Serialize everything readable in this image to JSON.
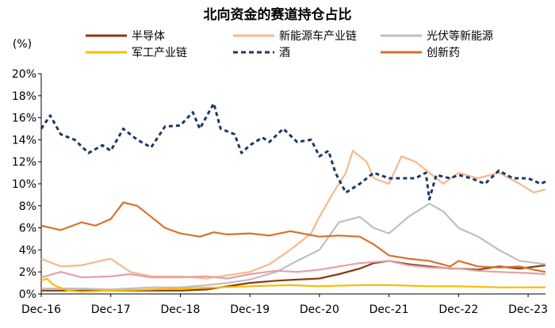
{
  "chart_data": {
    "type": "line",
    "title": "北向资金的赛道持仓占比",
    "ylabel": "(%)",
    "xlabel": "",
    "ylim": [
      0,
      20
    ],
    "yticks": [
      "0%",
      "2%",
      "4%",
      "6%",
      "8%",
      "10%",
      "12%",
      "14%",
      "16%",
      "18%",
      "20%"
    ],
    "xlim": [
      2016.92,
      2024.17
    ],
    "xticks": [
      {
        "label": "Dec-16",
        "x": 2016.92
      },
      {
        "label": "Dec-17",
        "x": 2017.92
      },
      {
        "label": "Dec-18",
        "x": 2018.92
      },
      {
        "label": "Dec-19",
        "x": 2019.92
      },
      {
        "label": "Dec-20",
        "x": 2020.92
      },
      {
        "label": "Dec-21",
        "x": 2021.92
      },
      {
        "label": "Dec-22",
        "x": 2022.92
      },
      {
        "label": "Dec-23",
        "x": 2023.92
      }
    ],
    "series": [
      {
        "name": "半导体",
        "color": "#8B3A0F",
        "dash": false,
        "x": [
          2016.92,
          2017.5,
          2017.92,
          2018.5,
          2018.92,
          2019.3,
          2019.6,
          2019.92,
          2020.3,
          2020.6,
          2020.92,
          2021.2,
          2021.5,
          2021.7,
          2021.92,
          2022.2,
          2022.5,
          2022.8,
          2022.92,
          2023.2,
          2023.5,
          2023.8,
          2023.92,
          2024.17
        ],
        "values": [
          0.3,
          0.3,
          0.3,
          0.3,
          0.3,
          0.4,
          0.7,
          1.0,
          1.2,
          1.3,
          1.4,
          1.8,
          2.3,
          2.8,
          3.0,
          2.7,
          2.5,
          2.3,
          2.3,
          2.2,
          2.5,
          2.3,
          2.4,
          2.6
        ]
      },
      {
        "name": "新能源车产业链",
        "color": "#F5B98F",
        "dash": false,
        "x": [
          2016.92,
          2017.2,
          2017.5,
          2017.7,
          2017.92,
          2018.2,
          2018.5,
          2018.92,
          2019.3,
          2019.6,
          2019.92,
          2020.2,
          2020.5,
          2020.8,
          2020.92,
          2021.1,
          2021.3,
          2021.4,
          2021.6,
          2021.7,
          2021.92,
          2022.1,
          2022.3,
          2022.5,
          2022.7,
          2022.92,
          2023.2,
          2023.5,
          2023.8,
          2024.0,
          2024.17
        ],
        "values": [
          3.2,
          2.5,
          2.6,
          2.9,
          3.2,
          2.0,
          1.6,
          1.6,
          1.4,
          1.7,
          2.0,
          2.7,
          4.0,
          5.5,
          7.0,
          9.0,
          11.0,
          13.0,
          12.0,
          10.5,
          10.0,
          12.5,
          12.0,
          11.0,
          10.0,
          11.0,
          10.5,
          11.0,
          10.0,
          9.2,
          9.5
        ]
      },
      {
        "name": "光伏等新能源",
        "color": "#BFBFBF",
        "dash": false,
        "x": [
          2016.92,
          2017.5,
          2017.92,
          2018.5,
          2018.92,
          2019.3,
          2019.6,
          2019.92,
          2020.3,
          2020.6,
          2020.92,
          2021.2,
          2021.5,
          2021.7,
          2021.92,
          2022.2,
          2022.5,
          2022.7,
          2022.92,
          2023.2,
          2023.5,
          2023.8,
          2024.17
        ],
        "values": [
          0.5,
          0.5,
          0.4,
          0.6,
          0.6,
          0.8,
          1.0,
          1.3,
          2.0,
          3.0,
          4.0,
          6.5,
          7.0,
          6.0,
          5.5,
          7.0,
          8.2,
          7.5,
          6.0,
          5.2,
          4.0,
          3.0,
          2.7
        ]
      },
      {
        "name": "军工产业链",
        "color": "#F7BD00",
        "dash": false,
        "x": [
          2016.92,
          2017.0,
          2017.1,
          2017.3,
          2017.5,
          2017.92,
          2018.5,
          2018.92,
          2019.5,
          2019.92,
          2020.5,
          2020.92,
          2021.5,
          2021.92,
          2022.5,
          2022.92,
          2023.5,
          2023.92,
          2024.17
        ],
        "values": [
          1.2,
          1.4,
          0.8,
          0.3,
          0.2,
          0.3,
          0.4,
          0.5,
          0.6,
          0.7,
          0.8,
          0.7,
          0.8,
          0.8,
          0.7,
          0.7,
          0.6,
          0.6,
          0.6
        ]
      },
      {
        "name": "酒",
        "color": "#1F3864",
        "dash": true,
        "x": [
          2016.92,
          2017.05,
          2017.2,
          2017.4,
          2017.6,
          2017.8,
          2017.92,
          2018.1,
          2018.3,
          2018.5,
          2018.7,
          2018.92,
          2019.1,
          2019.2,
          2019.4,
          2019.5,
          2019.7,
          2019.8,
          2019.92,
          2020.1,
          2020.2,
          2020.4,
          2020.6,
          2020.8,
          2020.92,
          2021.05,
          2021.15,
          2021.3,
          2021.5,
          2021.7,
          2021.92,
          2022.1,
          2022.3,
          2022.45,
          2022.5,
          2022.6,
          2022.8,
          2022.92,
          2023.1,
          2023.3,
          2023.5,
          2023.7,
          2023.92,
          2024.1,
          2024.17
        ],
        "values": [
          15.0,
          16.2,
          14.5,
          14.0,
          12.8,
          13.5,
          13.0,
          15.0,
          14.0,
          13.3,
          15.2,
          15.3,
          16.5,
          15.0,
          17.3,
          15.0,
          14.5,
          12.8,
          13.5,
          14.2,
          13.8,
          15.0,
          13.8,
          14.0,
          12.5,
          13.0,
          11.0,
          9.2,
          10.0,
          11.0,
          10.5,
          10.5,
          10.5,
          11.0,
          8.6,
          10.8,
          10.5,
          10.8,
          10.5,
          10.0,
          11.2,
          10.5,
          10.5,
          10.0,
          10.2
        ]
      },
      {
        "name": "创新药",
        "color": "#D7722B",
        "dash": false,
        "x": [
          2016.92,
          2017.2,
          2017.5,
          2017.7,
          2017.92,
          2018.1,
          2018.3,
          2018.5,
          2018.7,
          2018.92,
          2019.2,
          2019.4,
          2019.6,
          2019.92,
          2020.2,
          2020.5,
          2020.92,
          2021.2,
          2021.5,
          2021.7,
          2021.92,
          2022.2,
          2022.5,
          2022.8,
          2022.92,
          2023.2,
          2023.5,
          2023.8,
          2024.0,
          2024.17
        ],
        "values": [
          6.2,
          5.8,
          6.5,
          6.2,
          6.8,
          8.3,
          8.0,
          7.0,
          6.0,
          5.5,
          5.2,
          5.6,
          5.4,
          5.5,
          5.3,
          5.7,
          5.2,
          5.3,
          5.2,
          4.5,
          3.5,
          3.2,
          3.0,
          2.5,
          3.0,
          2.5,
          2.4,
          2.5,
          2.2,
          2.0
        ]
      },
      {
        "name": "创新药(低位线)",
        "color": "#E4A0A8",
        "dash": false,
        "legend": false,
        "x": [
          2016.92,
          2017.2,
          2017.5,
          2017.92,
          2018.2,
          2018.5,
          2018.92,
          2019.3,
          2019.6,
          2019.92,
          2020.3,
          2020.6,
          2020.92,
          2021.2,
          2021.5,
          2021.92,
          2022.2,
          2022.5,
          2022.92,
          2023.2,
          2023.5,
          2023.92,
          2024.17
        ],
        "values": [
          1.5,
          2.0,
          1.5,
          1.6,
          1.8,
          1.5,
          1.5,
          1.6,
          1.4,
          1.8,
          2.1,
          2.0,
          2.2,
          2.5,
          2.8,
          3.0,
          2.6,
          2.4,
          2.3,
          2.1,
          2.0,
          1.9,
          1.8
        ]
      }
    ],
    "legend": [
      {
        "label": "半导体",
        "color": "#8B3A0F",
        "dash": false
      },
      {
        "label": "新能源车产业链",
        "color": "#F5B98F",
        "dash": false
      },
      {
        "label": "光伏等新能源",
        "color": "#BFBFBF",
        "dash": false
      },
      {
        "label": "军工产业链",
        "color": "#F7BD00",
        "dash": false
      },
      {
        "label": "酒",
        "color": "#1F3864",
        "dash": true
      },
      {
        "label": "创新药",
        "color": "#D7722B",
        "dash": false
      }
    ],
    "grid": false,
    "legend_position": "top"
  }
}
